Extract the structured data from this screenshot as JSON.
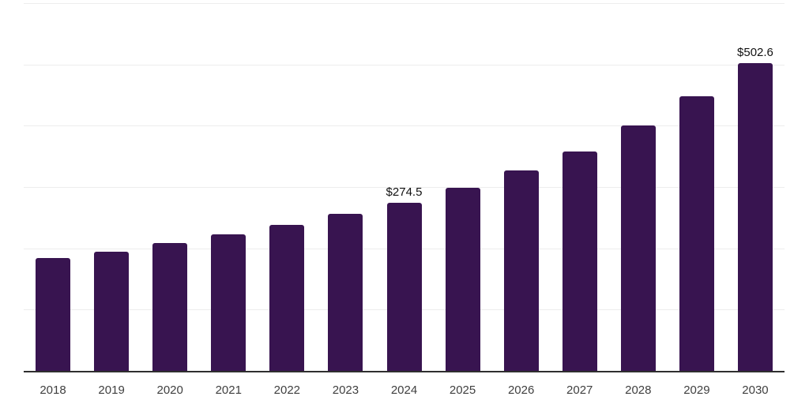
{
  "chart_data": {
    "type": "bar",
    "title": "",
    "xlabel": "",
    "ylabel": "",
    "categories": [
      "2018",
      "2019",
      "2020",
      "2021",
      "2022",
      "2023",
      "2024",
      "2025",
      "2026",
      "2027",
      "2028",
      "2029",
      "2030"
    ],
    "values": [
      184,
      195,
      209,
      223,
      238,
      256,
      274.5,
      299,
      327,
      358,
      401,
      448,
      502.6
    ],
    "data_labels": [
      {
        "category": "2024",
        "text": "$274.5"
      },
      {
        "category": "2030",
        "text": "$502.6"
      }
    ],
    "ylim": [
      0,
      600
    ],
    "y_gridline_interval": 100,
    "y_axis_tick_labels_visible": false,
    "grid": "horizontal",
    "legend": "none",
    "colors": {
      "bar": "#381450",
      "axis_line": "#2f2f2f",
      "gridline": "#ededed",
      "data_label": "#111111",
      "tick_label": "#3f3f3f",
      "background": "#ffffff"
    }
  }
}
